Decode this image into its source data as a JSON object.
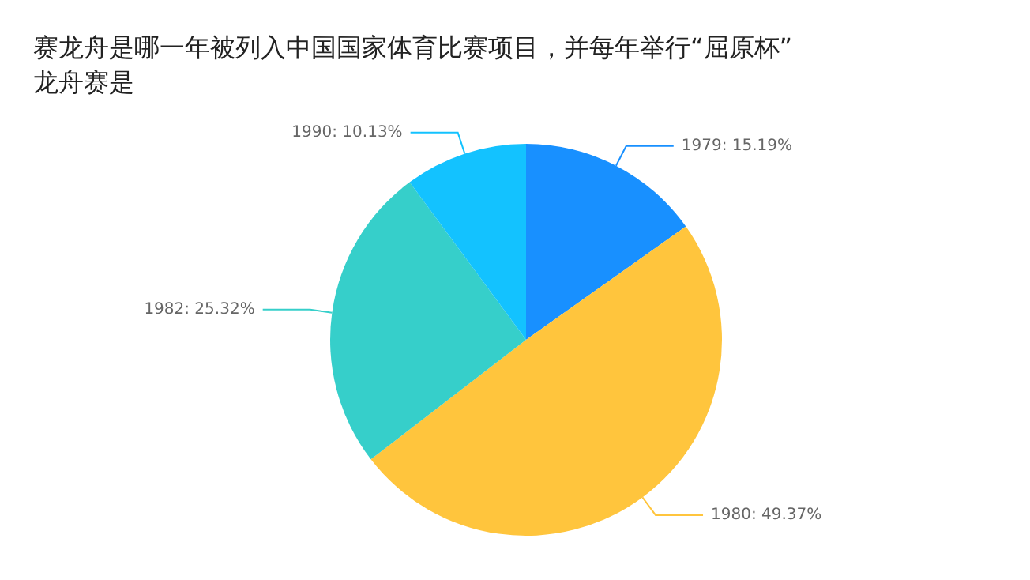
{
  "chart_data": {
    "type": "pie",
    "title": "赛龙舟是哪一年被列入中国国家体育比赛项目，并每年举行“屈原杯”龙舟赛是",
    "categories": [
      "1979",
      "1980",
      "1982",
      "1990"
    ],
    "values": [
      15.19,
      49.37,
      25.32,
      10.13
    ],
    "value_labels": [
      "15.19%",
      "49.37%",
      "25.32%",
      "10.13%"
    ],
    "colors": [
      "#1890ff",
      "#ffc53d",
      "#36cfca",
      "#13c2ff"
    ],
    "legend": false
  }
}
